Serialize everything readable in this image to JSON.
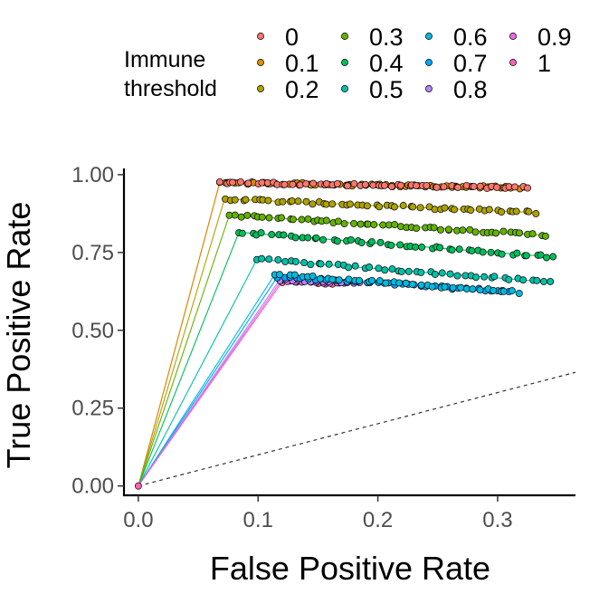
{
  "chart_data": {
    "type": "line",
    "xlabel": "False Positive Rate",
    "ylabel": "True Positive Rate",
    "xlim": [
      -0.012,
      0.365
    ],
    "ylim": [
      -0.03,
      1.02
    ],
    "xticks": [
      0.0,
      0.1,
      0.2,
      0.3
    ],
    "xtick_labels": [
      "0.0",
      "0.1",
      "0.2",
      "0.3"
    ],
    "yticks": [
      0.0,
      0.25,
      0.5,
      0.75,
      1.0
    ],
    "ytick_labels": [
      "0.00",
      "0.25",
      "0.50",
      "0.75",
      "1.00"
    ],
    "reference_line": {
      "from": [
        0,
        0
      ],
      "slope": 1,
      "style": "dashed"
    },
    "legend": {
      "title": "Immune\nthreshold",
      "title_lines": [
        "Immune",
        "threshold"
      ],
      "placement": "top",
      "labels": [
        "0",
        "0.1",
        "0.2",
        "0.3",
        "0.4",
        "0.5",
        "0.6",
        "0.7",
        "0.8",
        "0.9",
        "1"
      ]
    },
    "origin_point": [
      0,
      0
    ],
    "series": [
      {
        "name": "0",
        "color": "#F8766D",
        "start": [
          0.068,
          0.975
        ],
        "end": [
          0.325,
          0.958
        ],
        "n": 60
      },
      {
        "name": "0.1",
        "color": "#DB8E00",
        "start": [
          0.068,
          0.975
        ],
        "end": [
          0.322,
          0.958
        ],
        "n": 60
      },
      {
        "name": "0.2",
        "color": "#AEA200",
        "start": [
          0.072,
          0.922
        ],
        "end": [
          0.332,
          0.878
        ],
        "n": 55
      },
      {
        "name": "0.3",
        "color": "#64B200",
        "start": [
          0.076,
          0.87
        ],
        "end": [
          0.34,
          0.805
        ],
        "n": 55
      },
      {
        "name": "0.4",
        "color": "#00BD5C",
        "start": [
          0.084,
          0.815
        ],
        "end": [
          0.347,
          0.735
        ],
        "n": 52
      },
      {
        "name": "0.5",
        "color": "#00C1A7",
        "start": [
          0.099,
          0.728
        ],
        "end": [
          0.344,
          0.655
        ],
        "n": 45
      },
      {
        "name": "0.6",
        "color": "#00BADE",
        "start": [
          0.114,
          0.68
        ],
        "end": [
          0.318,
          0.622
        ],
        "n": 38
      },
      {
        "name": "0.7",
        "color": "#00A6FF",
        "start": [
          0.116,
          0.671
        ],
        "end": [
          0.31,
          0.625
        ],
        "n": 38
      },
      {
        "name": "0.8",
        "color": "#B385FF",
        "start": [
          0.118,
          0.662
        ],
        "end": [
          0.185,
          0.655
        ],
        "n": 14
      },
      {
        "name": "0.9",
        "color": "#EF67EB",
        "start": [
          0.119,
          0.658
        ],
        "end": [
          0.172,
          0.652
        ],
        "n": 10
      },
      {
        "name": "1",
        "color": "#FF63B6",
        "start": [
          0.12,
          0.655
        ],
        "end": [
          0.168,
          0.65
        ],
        "n": 9
      }
    ]
  }
}
